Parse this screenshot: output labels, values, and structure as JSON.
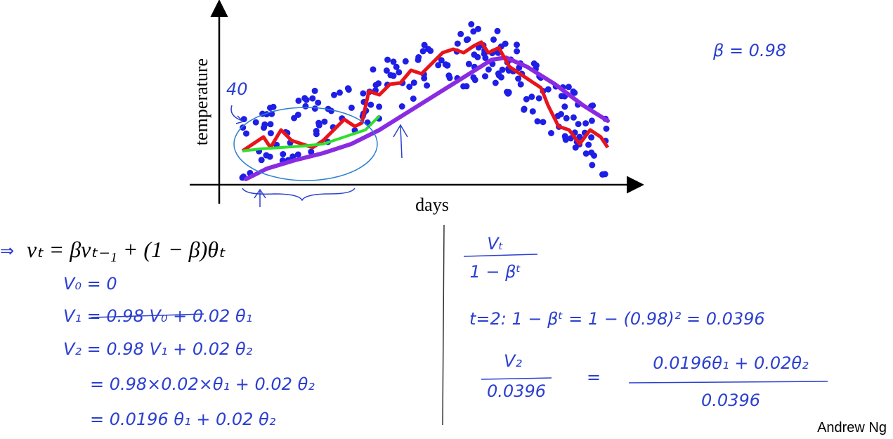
{
  "plot": {
    "y_label": "temperature",
    "x_label": "days",
    "annotation": "40"
  },
  "beta_note": "β = 0.98",
  "equation": "vₜ = βvₜ₋₁ + (1 − β)θₜ",
  "left_notes": [
    "V₀ = 0",
    "V₁ = 0.98 V₀ + 0.02 θ₁",
    "V₂ = 0.98 V₁ + 0.02 θ₂",
    "= 0.98×0.02×θ₁ + 0.02 θ₂",
    "= 0.0196 θ₁ + 0.02 θ₂"
  ],
  "right_notes": {
    "fraction_top": "Vₜ",
    "fraction_bottom": "1 − βᵗ",
    "t2_line": "t=2:   1 − βᵗ  =  1 − (0.98)²  =  0.0396",
    "v2_top": "V₂",
    "v2_bottom": "0.0396",
    "equals": "=",
    "rhs_top": "0.0196θ₁ + 0.02θ₂",
    "rhs_bottom": "0.0396"
  },
  "footer": "Andrew Ng"
}
